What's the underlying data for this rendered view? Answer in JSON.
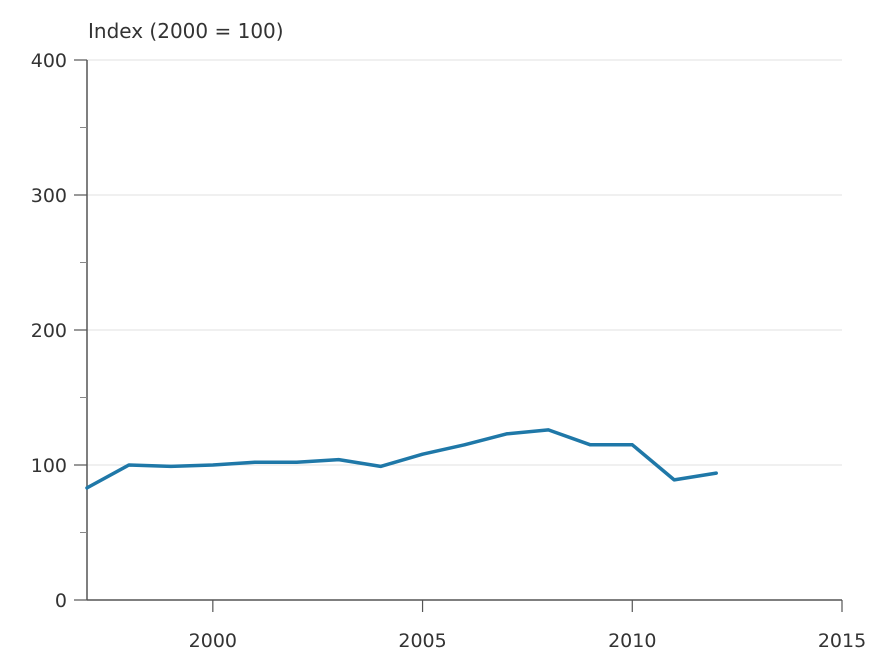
{
  "chart_data": {
    "type": "line",
    "ylabel": "Index (2000 = 100)",
    "xlim": [
      1997,
      2015
    ],
    "ylim": [
      0,
      400
    ],
    "x_ticks": [
      2000,
      2005,
      2010,
      2015
    ],
    "y_ticks": [
      0,
      100,
      200,
      300,
      400
    ],
    "x_tick_labels": [
      "2000",
      "2005",
      "2010",
      "2015"
    ],
    "y_tick_labels": [
      "0",
      "100",
      "200",
      "300",
      "400"
    ],
    "grid": true,
    "legend": "none",
    "series": [
      {
        "color": "#1f78a8",
        "x": [
          1997,
          1998,
          1999,
          2000,
          2001,
          2002,
          2003,
          2004,
          2005,
          2006,
          2007,
          2008,
          2009,
          2010,
          2011,
          2012
        ],
        "values": [
          83,
          100,
          99,
          100,
          102,
          102,
          104,
          99,
          108,
          115,
          123,
          126,
          115,
          115,
          89,
          94
        ]
      }
    ]
  }
}
